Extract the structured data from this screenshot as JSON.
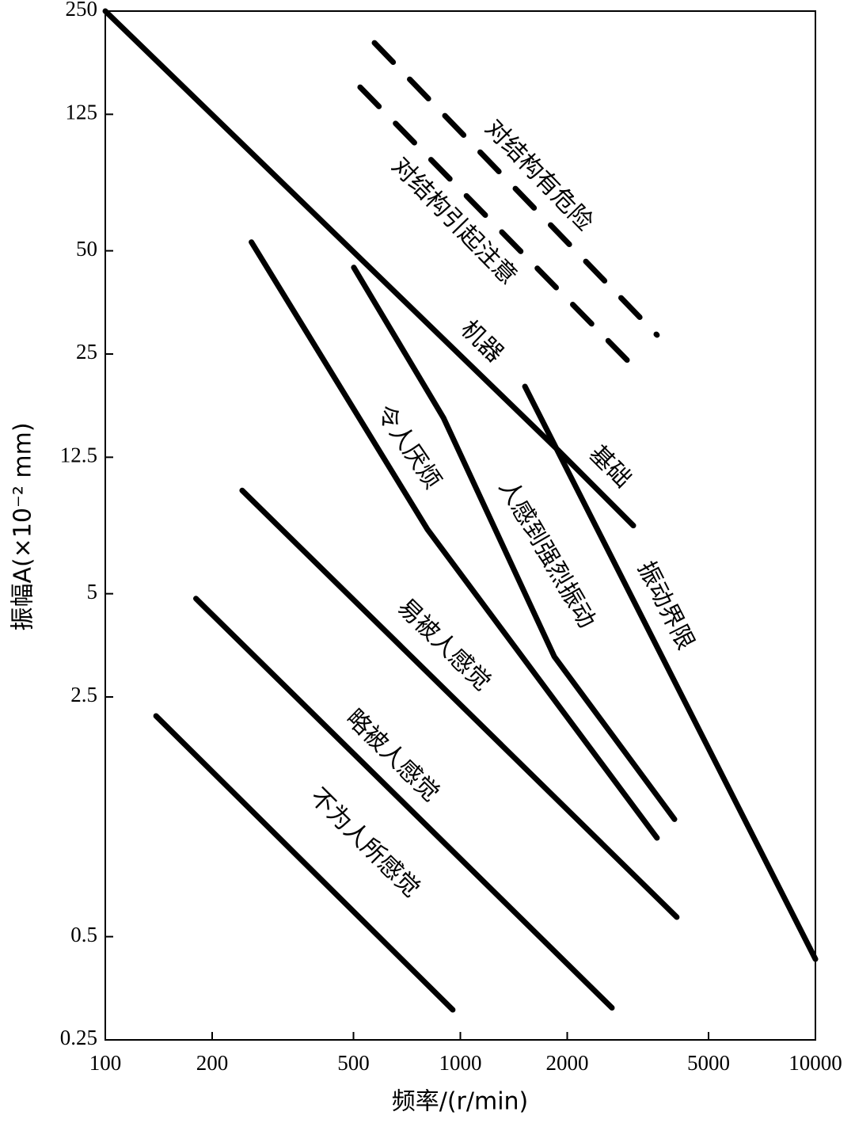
{
  "chart_data": {
    "type": "line",
    "xlabel": "频率/(r/min)",
    "ylabel": "振幅A(×10⁻² mm)",
    "xscale": "log",
    "yscale": "log",
    "grid": false,
    "xlim": [
      100,
      10000
    ],
    "xticks": [
      100,
      200,
      500,
      1000,
      2000,
      5000,
      10000
    ],
    "ylim": [
      0.25,
      250
    ],
    "yticks": [
      0.25,
      0.5,
      2.5,
      5,
      12.5,
      25,
      50,
      125,
      250
    ],
    "series": [
      {
        "name": "对结构有危险",
        "color": "#000000",
        "dashed": true,
        "x": [
          573,
          3580
        ],
        "values": [
          202,
          28.4
        ]
      },
      {
        "name": "对结构引起注意",
        "color": "#000000",
        "dashed": true,
        "x": [
          522,
          3230
        ],
        "values": [
          150,
          21.8
        ]
      },
      {
        "name": "机器",
        "color": "#000000",
        "dashed": false,
        "x": [
          100,
          1885
        ],
        "values": [
          250,
          13.1
        ]
      },
      {
        "name": "基础",
        "color": "#000000",
        "dashed": false,
        "x": [
          1885,
          3070
        ],
        "values": [
          13.1,
          7.9
        ]
      },
      {
        "name": "振动界限",
        "color": "#000000",
        "dashed": false,
        "x": [
          1520,
          10000
        ],
        "values": [
          20.1,
          0.43
        ]
      },
      {
        "name": "人感到强烈振动",
        "color": "#000000",
        "dashed": false,
        "x": [
          501,
          896,
          1838,
          4010
        ],
        "values": [
          44.7,
          16.3,
          3.28,
          1.1
        ]
      },
      {
        "name": "令人厌烦",
        "color": "#000000",
        "dashed": false,
        "x": [
          258,
          808,
          3580
        ],
        "values": [
          53,
          7.7,
          0.97
        ]
      },
      {
        "name": "易被人感觉",
        "color": "#000000",
        "dashed": false,
        "x": [
          243,
          4070
        ],
        "values": [
          10,
          0.57
        ]
      },
      {
        "name": "略被人感觉",
        "color": "#000000",
        "dashed": false,
        "x": [
          180,
          2673
        ],
        "values": [
          4.84,
          0.31
        ]
      },
      {
        "name": "不为人所感觉",
        "color": "#000000",
        "dashed": false,
        "x": [
          139,
          952
        ],
        "values": [
          2.2,
          0.306
        ]
      }
    ]
  }
}
